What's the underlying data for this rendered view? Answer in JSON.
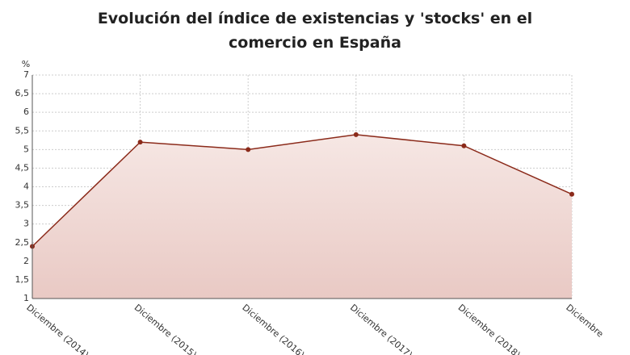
{
  "chart_data": {
    "type": "area",
    "title": "Evolución del índice de existencias y 'stocks' en el comercio en España",
    "y_unit": "%",
    "categories": [
      "Diciembre (2014)",
      "Diciembre (2015)",
      "Diciembre (2016)",
      "Diciembre (2017)",
      "Diciembre (2018)",
      "Diciembre"
    ],
    "values": [
      2.4,
      5.2,
      5.0,
      5.4,
      5.1,
      3.8
    ],
    "color": "#8b2a1a",
    "ylim": [
      1,
      7
    ],
    "yticks": [
      1,
      {
        "value": 1.5,
        "label": "1,5"
      },
      2,
      {
        "value": 2.5,
        "label": "2,5"
      },
      3,
      {
        "value": 3.5,
        "label": "3,5"
      },
      4,
      {
        "value": 4.5,
        "label": "4,5"
      },
      5,
      {
        "value": 5.5,
        "label": "5,5"
      },
      6,
      {
        "value": 6.5,
        "label": "6,5"
      },
      7
    ],
    "grid": true
  }
}
